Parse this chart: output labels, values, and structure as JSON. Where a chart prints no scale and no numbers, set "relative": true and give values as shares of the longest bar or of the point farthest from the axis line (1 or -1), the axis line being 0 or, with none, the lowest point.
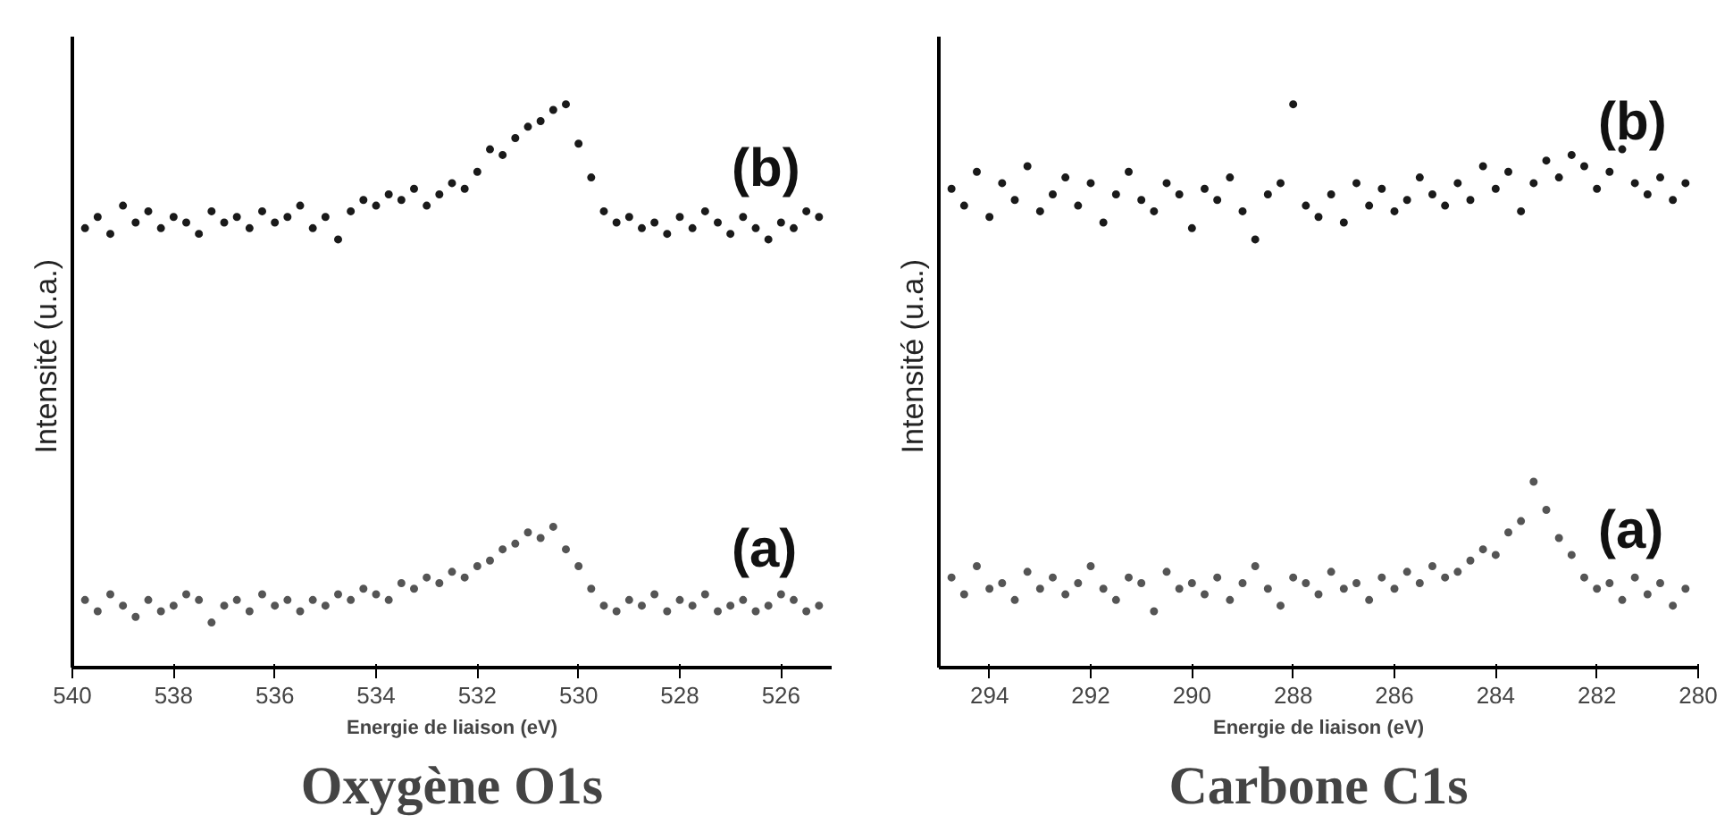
{
  "chart_data": [
    {
      "type": "scatter",
      "title": "Oxygène O1s",
      "xlabel": "Energie de liaison (eV)",
      "ylabel": "Intensité  (u.a.)",
      "relative": true,
      "marker": "circle",
      "legend": false,
      "grid": false,
      "tick_labels": "x",
      "xlim": [
        540,
        525
      ],
      "xticks": [
        540,
        538,
        536,
        534,
        532,
        530,
        528,
        526
      ],
      "x": [
        539.75,
        539.5,
        539.25,
        539,
        538.75,
        538.5,
        538.25,
        538,
        537.75,
        537.5,
        537.25,
        537,
        536.75,
        536.5,
        536.25,
        536,
        535.75,
        535.5,
        535.25,
        535,
        534.75,
        534.5,
        534.25,
        534,
        533.75,
        533.5,
        533.25,
        533,
        532.75,
        532.5,
        532.25,
        532,
        531.75,
        531.5,
        531.25,
        531,
        530.75,
        530.5,
        530.25,
        530,
        529.75,
        529.5,
        529.25,
        529,
        528.75,
        528.5,
        528.25,
        528,
        527.75,
        527.5,
        527.25,
        527,
        526.75,
        526.5,
        526.25,
        526,
        525.75,
        525.5,
        525.25
      ],
      "series": [
        {
          "name": "(b)",
          "color": "#1a1a1a",
          "values": [
            0.78,
            0.8,
            0.77,
            0.82,
            0.79,
            0.81,
            0.78,
            0.8,
            0.79,
            0.77,
            0.81,
            0.79,
            0.8,
            0.78,
            0.81,
            0.79,
            0.8,
            0.82,
            0.78,
            0.8,
            0.76,
            0.81,
            0.83,
            0.82,
            0.84,
            0.83,
            0.85,
            0.82,
            0.84,
            0.86,
            0.85,
            0.88,
            0.92,
            0.91,
            0.94,
            0.96,
            0.97,
            0.99,
            1.0,
            0.93,
            0.87,
            0.81,
            0.79,
            0.8,
            0.78,
            0.79,
            0.77,
            0.8,
            0.78,
            0.81,
            0.79,
            0.77,
            0.8,
            0.78,
            0.76,
            0.79,
            0.78,
            0.81,
            0.8
          ]
        },
        {
          "name": "(a)",
          "color": "#555555",
          "values": [
            0.12,
            0.1,
            0.13,
            0.11,
            0.09,
            0.12,
            0.1,
            0.11,
            0.13,
            0.12,
            0.08,
            0.11,
            0.12,
            0.1,
            0.13,
            0.11,
            0.12,
            0.1,
            0.12,
            0.11,
            0.13,
            0.12,
            0.14,
            0.13,
            0.12,
            0.15,
            0.14,
            0.16,
            0.15,
            0.17,
            0.16,
            0.18,
            0.19,
            0.21,
            0.22,
            0.24,
            0.23,
            0.25,
            0.21,
            0.18,
            0.14,
            0.11,
            0.1,
            0.12,
            0.11,
            0.13,
            0.1,
            0.12,
            0.11,
            0.13,
            0.1,
            0.11,
            0.12,
            0.1,
            0.11,
            0.13,
            0.12,
            0.1,
            0.11
          ]
        }
      ]
    },
    {
      "type": "scatter",
      "title": "Carbone C1s",
      "xlabel": "Energie de liaison (eV)",
      "ylabel": "Intensité  (u.a.)",
      "relative": true,
      "marker": "circle",
      "legend": false,
      "grid": false,
      "tick_labels": "x",
      "xlim": [
        295,
        280
      ],
      "xticks": [
        294,
        292,
        290,
        288,
        286,
        284,
        282,
        280
      ],
      "x": [
        294.75,
        294.5,
        294.25,
        294,
        293.75,
        293.5,
        293.25,
        293,
        292.75,
        292.5,
        292.25,
        292,
        291.75,
        291.5,
        291.25,
        291,
        290.75,
        290.5,
        290.25,
        290,
        289.75,
        289.5,
        289.25,
        289,
        288.75,
        288.5,
        288.25,
        288,
        287.75,
        287.5,
        287.25,
        287,
        286.75,
        286.5,
        286.25,
        286,
        285.75,
        285.5,
        285.25,
        285,
        284.75,
        284.5,
        284.25,
        284,
        283.75,
        283.5,
        283.25,
        283,
        282.75,
        282.5,
        282.25,
        282,
        281.75,
        281.5,
        281.25,
        281,
        280.75,
        280.5,
        280.25
      ],
      "series": [
        {
          "name": "(b)",
          "color": "#1a1a1a",
          "values": [
            0.85,
            0.82,
            0.88,
            0.8,
            0.86,
            0.83,
            0.89,
            0.81,
            0.84,
            0.87,
            0.82,
            0.86,
            0.79,
            0.84,
            0.88,
            0.83,
            0.81,
            0.86,
            0.84,
            0.78,
            0.85,
            0.83,
            0.87,
            0.81,
            0.76,
            0.84,
            0.86,
            1.0,
            0.82,
            0.8,
            0.84,
            0.79,
            0.86,
            0.82,
            0.85,
            0.81,
            0.83,
            0.87,
            0.84,
            0.82,
            0.86,
            0.83,
            0.89,
            0.85,
            0.88,
            0.81,
            0.86,
            0.9,
            0.87,
            0.91,
            0.89,
            0.85,
            0.88,
            0.92,
            0.86,
            0.84,
            0.87,
            0.83,
            0.86
          ]
        },
        {
          "name": "(a)",
          "color": "#555555",
          "values": [
            0.16,
            0.13,
            0.18,
            0.14,
            0.15,
            0.12,
            0.17,
            0.14,
            0.16,
            0.13,
            0.15,
            0.18,
            0.14,
            0.12,
            0.16,
            0.15,
            0.1,
            0.17,
            0.14,
            0.15,
            0.13,
            0.16,
            0.12,
            0.15,
            0.18,
            0.14,
            0.11,
            0.16,
            0.15,
            0.13,
            0.17,
            0.14,
            0.15,
            0.12,
            0.16,
            0.14,
            0.17,
            0.15,
            0.18,
            0.16,
            0.17,
            0.19,
            0.21,
            0.2,
            0.24,
            0.26,
            0.33,
            0.28,
            0.23,
            0.2,
            0.16,
            0.14,
            0.15,
            0.12,
            0.16,
            0.13,
            0.15,
            0.11,
            0.14
          ]
        }
      ]
    }
  ]
}
